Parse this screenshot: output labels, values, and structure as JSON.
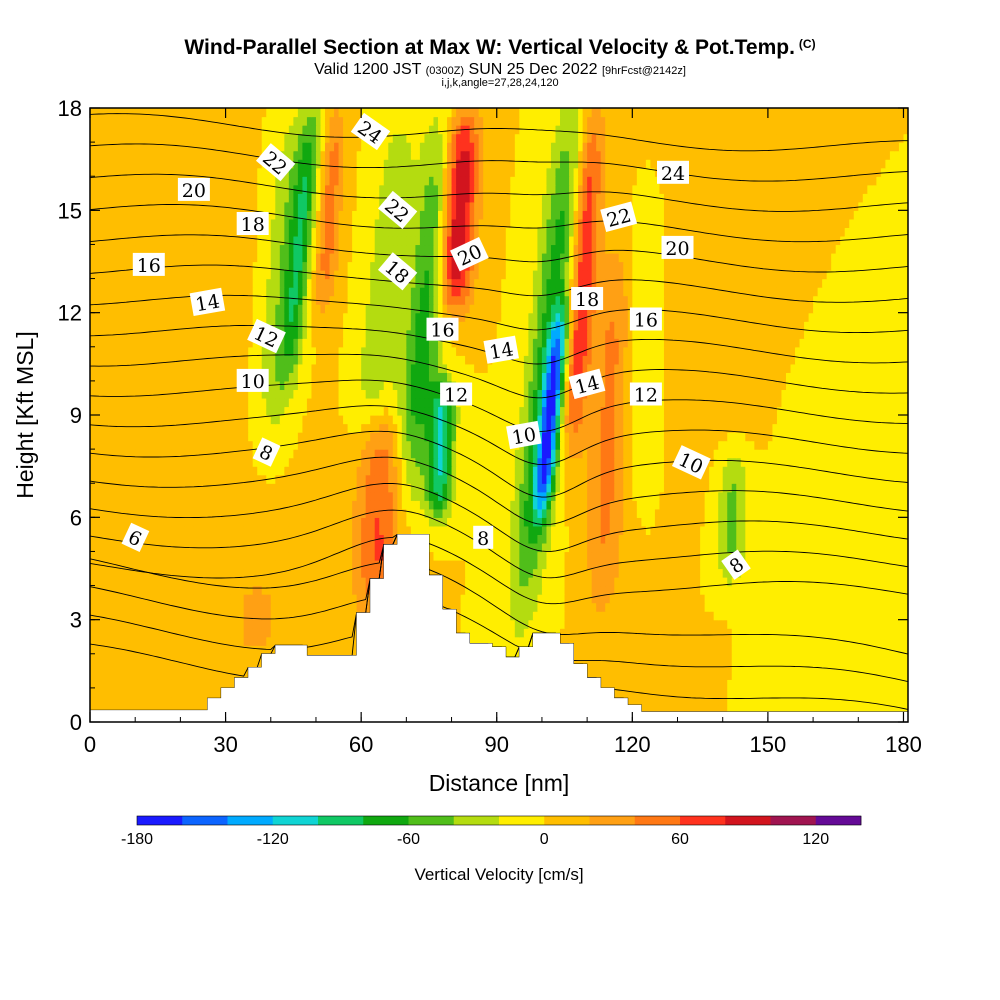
{
  "header": {
    "title": "Wind-Parallel Section at Max W: Vertical Velocity & Pot.Temp.",
    "title_tag": "(C)",
    "valid_a": "Valid 1200 JST",
    "valid_b": "(0300Z)",
    "valid_c": "SUN 25 Dec 2022",
    "valid_d": "[9hrFcst@2142z]",
    "params": "i,j,k,angle=27,28,24,120"
  },
  "chart_data": {
    "type": "heatmap",
    "xlabel": "Distance [nm]",
    "ylabel": "Height [Kft MSL]",
    "xlim": [
      0,
      181
    ],
    "ylim": [
      0,
      18
    ],
    "x_ticks": [
      "0",
      "30",
      "60",
      "90",
      "120",
      "150",
      "180"
    ],
    "y_ticks": [
      "0",
      "3",
      "6",
      "9",
      "12",
      "15",
      "18"
    ],
    "terrain": [
      [
        0,
        0.35
      ],
      [
        26,
        0.35
      ],
      [
        26,
        0.7
      ],
      [
        29,
        0.7
      ],
      [
        29,
        1.0
      ],
      [
        32,
        1.0
      ],
      [
        32,
        1.3
      ],
      [
        35,
        1.3
      ],
      [
        35,
        1.6
      ],
      [
        38,
        1.6
      ],
      [
        38,
        2.0
      ],
      [
        41,
        2.0
      ],
      [
        41,
        2.25
      ],
      [
        48,
        2.25
      ],
      [
        48,
        1.95
      ],
      [
        59,
        1.95
      ],
      [
        59,
        3.2
      ],
      [
        62,
        3.2
      ],
      [
        62,
        4.2
      ],
      [
        65,
        4.2
      ],
      [
        65,
        5.2
      ],
      [
        68,
        5.2
      ],
      [
        68,
        5.5
      ],
      [
        75,
        5.5
      ],
      [
        75,
        4.3
      ],
      [
        78,
        4.3
      ],
      [
        78,
        3.3
      ],
      [
        81,
        3.3
      ],
      [
        81,
        2.6
      ],
      [
        84,
        2.6
      ],
      [
        84,
        2.3
      ],
      [
        89,
        2.3
      ],
      [
        89,
        2.2
      ],
      [
        92,
        2.2
      ],
      [
        92,
        1.9
      ],
      [
        95,
        1.9
      ],
      [
        95,
        2.2
      ],
      [
        98,
        2.2
      ],
      [
        98,
        2.6
      ],
      [
        104,
        2.6
      ],
      [
        104,
        2.3
      ],
      [
        107,
        2.3
      ],
      [
        107,
        1.7
      ],
      [
        110,
        1.7
      ],
      [
        110,
        1.3
      ],
      [
        113,
        1.3
      ],
      [
        113,
        1.0
      ],
      [
        116,
        1.0
      ],
      [
        116,
        0.7
      ],
      [
        119,
        0.7
      ],
      [
        119,
        0.5
      ],
      [
        122,
        0.5
      ],
      [
        122,
        0.3
      ],
      [
        181,
        0.3
      ]
    ],
    "colorbar": {
      "title": "Vertical Velocity [cm/s]",
      "labels": [
        "-180",
        "-120",
        "-60",
        "0",
        "60",
        "120"
      ],
      "label_values": [
        -180,
        -120,
        -60,
        0,
        60,
        120
      ],
      "levels": [
        -180,
        -160,
        -140,
        -120,
        -100,
        -80,
        -60,
        -40,
        -20,
        0,
        20,
        40,
        60,
        80,
        100,
        120,
        140
      ],
      "colors": [
        "#1a1aff",
        "#0c64ff",
        "#00aaff",
        "#10d4d4",
        "#10c864",
        "#10a810",
        "#50be1a",
        "#b4dc10",
        "#ffee00",
        "#ffbe00",
        "#ffa014",
        "#ff7814",
        "#ff321e",
        "#d2141e",
        "#a01450",
        "#640a96"
      ]
    },
    "w_features": [
      {
        "x": 40,
        "y0": 8,
        "y1": 18,
        "w": -40,
        "sigma_x": 3.5,
        "tilt": 0.7
      },
      {
        "x": 43,
        "y0": 10,
        "y1": 18,
        "w": -60,
        "sigma_x": 1.8,
        "tilt": 0.7
      },
      {
        "x": 50,
        "y0": 12,
        "y1": 18,
        "w": 50,
        "sigma_x": 1.8,
        "tilt": 0.5
      },
      {
        "x": 65,
        "y0": 3,
        "y1": 9,
        "w": 65,
        "sigma_x": 4,
        "tilt": 0.2
      },
      {
        "x": 62,
        "y0": 8,
        "y1": 18,
        "w": -35,
        "sigma_x": 3,
        "tilt": 0.8
      },
      {
        "x": 72,
        "y0": 6,
        "y1": 18,
        "w": -70,
        "sigma_x": 3,
        "tilt": 0.75
      },
      {
        "x": 78,
        "y0": 6,
        "y1": 10,
        "w": -100,
        "sigma_x": 2,
        "tilt": 0.3
      },
      {
        "x": 79,
        "y0": 12,
        "y1": 18,
        "w": 110,
        "sigma_x": 2.8,
        "tilt": 0.4
      },
      {
        "x": 100,
        "y0": 3,
        "y1": 18,
        "w": -70,
        "sigma_x": 3,
        "tilt": 0.75
      },
      {
        "x": 102,
        "y0": 6,
        "y1": 12,
        "w": -125,
        "sigma_x": 1.5,
        "tilt": 0.75
      },
      {
        "x": 107,
        "y0": 8,
        "y1": 18,
        "w": 80,
        "sigma_x": 2,
        "tilt": 0.5
      },
      {
        "x": 115,
        "y0": 3,
        "y1": 14,
        "w": 45,
        "sigma_x": 3,
        "tilt": 0.3
      },
      {
        "x": 122,
        "y0": 7,
        "y1": 16,
        "w": -25,
        "sigma_x": 3,
        "tilt": 0.3
      },
      {
        "x": 143,
        "y0": 4,
        "y1": 8,
        "w": -45,
        "sigma_x": 2.5,
        "tilt": 0.3
      },
      {
        "x": 37,
        "y0": 2,
        "y1": 4,
        "w": 30,
        "sigma_x": 3,
        "tilt": 0
      }
    ],
    "theta_contours": {
      "levels": [
        6,
        7,
        8,
        9,
        10,
        11,
        12,
        13,
        14,
        15,
        16,
        17,
        18,
        19,
        20,
        21,
        22,
        23,
        24,
        25
      ],
      "labels": [
        {
          "text": "6",
          "x": 10,
          "y": 5.4,
          "angle": 25
        },
        {
          "text": "8",
          "x": 39,
          "y": 7.9,
          "angle": 25
        },
        {
          "text": "10",
          "x": 36,
          "y": 10.0,
          "angle": 0
        },
        {
          "text": "12",
          "x": 39,
          "y": 11.3,
          "angle": 25
        },
        {
          "text": "14",
          "x": 26,
          "y": 12.3,
          "angle": -10
        },
        {
          "text": "16",
          "x": 13,
          "y": 13.4,
          "angle": 0
        },
        {
          "text": "18",
          "x": 36,
          "y": 14.6,
          "angle": 0
        },
        {
          "text": "20",
          "x": 23,
          "y": 15.6,
          "angle": 0
        },
        {
          "text": "22",
          "x": 41,
          "y": 16.4,
          "angle": 40
        },
        {
          "text": "24",
          "x": 62,
          "y": 17.3,
          "angle": 35
        },
        {
          "text": "22",
          "x": 68,
          "y": 15.0,
          "angle": 40
        },
        {
          "text": "18",
          "x": 68,
          "y": 13.2,
          "angle": 40
        },
        {
          "text": "20",
          "x": 84,
          "y": 13.7,
          "angle": -25
        },
        {
          "text": "16",
          "x": 78,
          "y": 11.5,
          "angle": 0
        },
        {
          "text": "12",
          "x": 81,
          "y": 9.6,
          "angle": 0
        },
        {
          "text": "14",
          "x": 91,
          "y": 10.9,
          "angle": -10
        },
        {
          "text": "10",
          "x": 96,
          "y": 8.4,
          "angle": -10
        },
        {
          "text": "8",
          "x": 87,
          "y": 5.4,
          "angle": 0
        },
        {
          "text": "18",
          "x": 110,
          "y": 12.4,
          "angle": 0
        },
        {
          "text": "14",
          "x": 110,
          "y": 9.9,
          "angle": -15
        },
        {
          "text": "22",
          "x": 117,
          "y": 14.8,
          "angle": -15
        },
        {
          "text": "24",
          "x": 129,
          "y": 16.1,
          "angle": 0
        },
        {
          "text": "20",
          "x": 130,
          "y": 13.9,
          "angle": 0
        },
        {
          "text": "16",
          "x": 123,
          "y": 11.8,
          "angle": 0
        },
        {
          "text": "12",
          "x": 123,
          "y": 9.6,
          "angle": 0
        },
        {
          "text": "10",
          "x": 133,
          "y": 7.6,
          "angle": 25
        },
        {
          "text": "8",
          "x": 143,
          "y": 4.6,
          "angle": -35
        }
      ]
    }
  }
}
